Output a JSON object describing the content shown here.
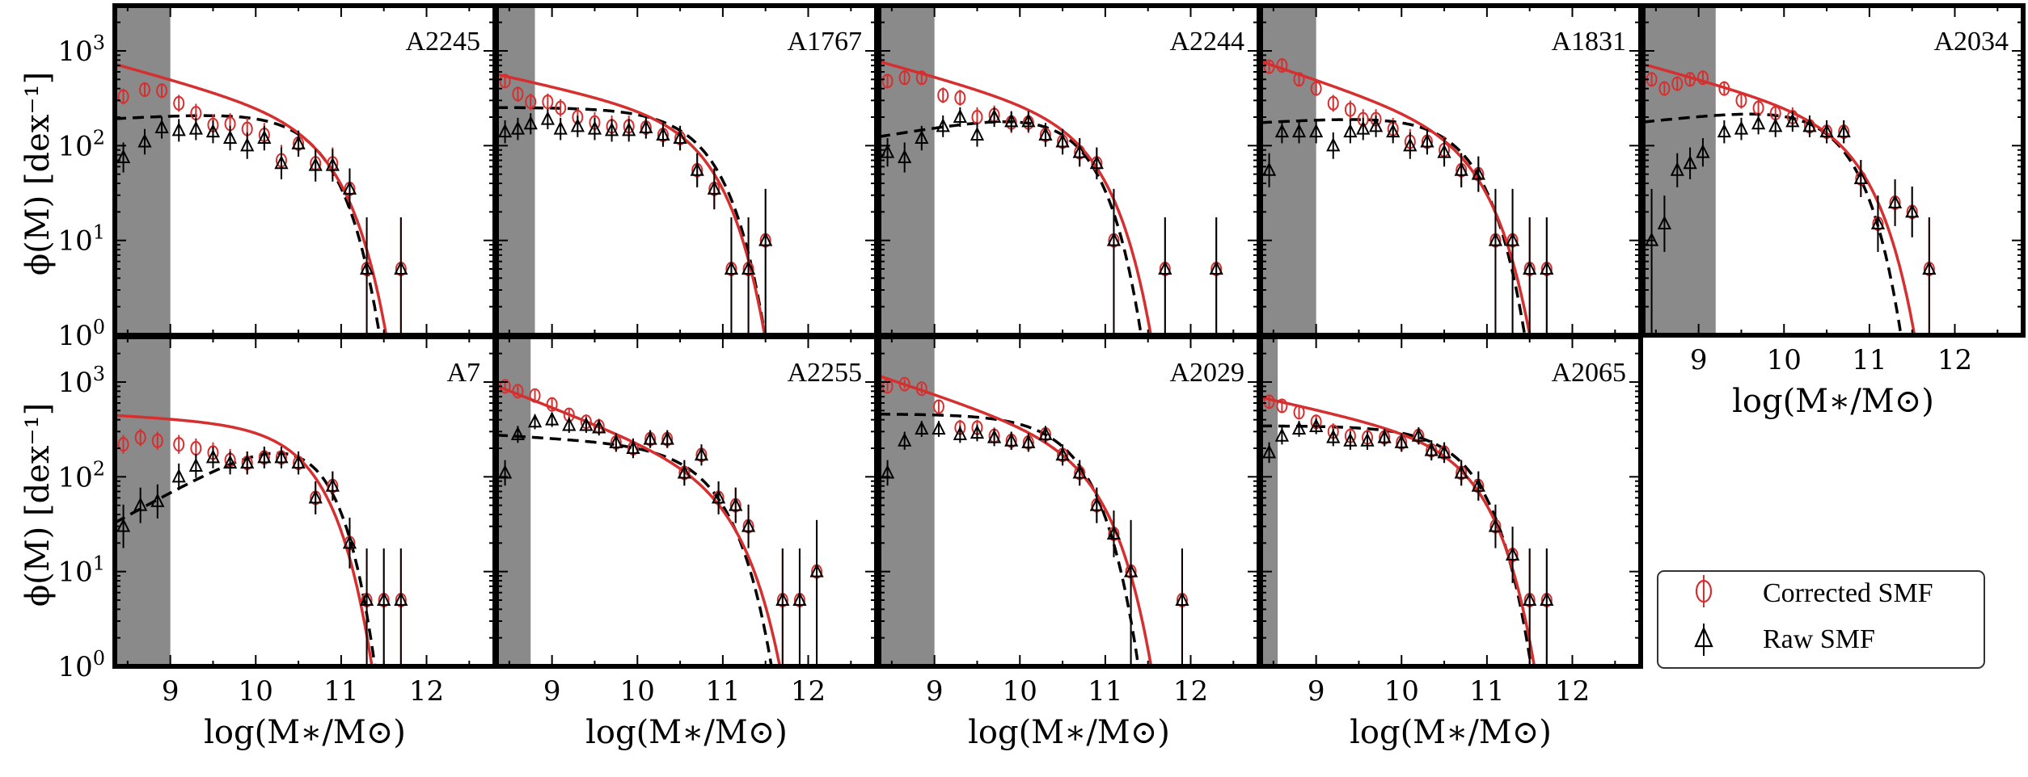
{
  "figure": {
    "ylabel": "ϕ(M) [dex⁻¹]",
    "xlabel": "log(M∗/M⊙)"
  },
  "legend": {
    "corrected_label": "Corrected SMF",
    "raw_label": "Raw SMF",
    "corrected_color": "#d62f2f",
    "raw_color": "#000000"
  },
  "chart_data": [
    {
      "type": "scatter",
      "title": "A2245",
      "xlim": [
        8.35,
        12.8
      ],
      "ylim": [
        1,
        3000
      ],
      "yscale": "log",
      "mass_limit": 9.0,
      "xticks": [
        9,
        10,
        11,
        12
      ],
      "yticks": [
        "10^0",
        "10^1",
        "10^2",
        "10^3"
      ],
      "series": [
        {
          "name": "Corrected SMF",
          "color": "#d62f2f",
          "x": [
            8.45,
            8.7,
            8.9,
            9.1,
            9.3,
            9.5,
            9.7,
            9.9,
            10.1,
            10.3,
            10.5,
            10.7,
            10.9,
            11.1,
            11.3,
            11.7
          ],
          "y": [
            330,
            390,
            380,
            280,
            220,
            165,
            170,
            150,
            130,
            70,
            105,
            65,
            65,
            35,
            5,
            5
          ]
        },
        {
          "name": "Raw SMF",
          "color": "#000000",
          "x": [
            8.45,
            8.7,
            8.9,
            9.1,
            9.3,
            9.5,
            9.7,
            9.9,
            10.1,
            10.3,
            10.5,
            10.7,
            10.9,
            11.1,
            11.3,
            11.7
          ],
          "y": [
            75,
            110,
            155,
            145,
            150,
            140,
            120,
            100,
            120,
            65,
            105,
            62,
            62,
            35,
            5,
            5
          ]
        }
      ],
      "fit_corrected": {
        "logMstar": 10.85,
        "phi": 75,
        "alpha": -1.25
      },
      "fit_raw": {
        "logMstar": 10.7,
        "phi": 110,
        "alpha": -0.95
      }
    },
    {
      "type": "scatter",
      "title": "A1767",
      "xlim": [
        8.35,
        12.8
      ],
      "ylim": [
        1,
        3000
      ],
      "yscale": "log",
      "mass_limit": 8.8,
      "xticks": [
        9,
        10,
        11,
        12
      ],
      "yticks": [
        "10^0",
        "10^1",
        "10^2",
        "10^3"
      ],
      "series": [
        {
          "name": "Corrected SMF",
          "color": "#d62f2f",
          "x": [
            8.45,
            8.6,
            8.75,
            8.95,
            9.1,
            9.3,
            9.5,
            9.7,
            9.9,
            10.1,
            10.3,
            10.5,
            10.7,
            10.9,
            11.1,
            11.3,
            11.5
          ],
          "y": [
            480,
            350,
            290,
            290,
            250,
            200,
            175,
            160,
            160,
            155,
            130,
            120,
            55,
            35,
            5,
            5,
            10
          ]
        },
        {
          "name": "Raw SMF",
          "color": "#000000",
          "x": [
            8.45,
            8.6,
            8.75,
            8.95,
            9.1,
            9.3,
            9.5,
            9.7,
            9.9,
            10.1,
            10.3,
            10.5,
            10.7,
            10.9,
            11.1,
            11.3,
            11.5
          ],
          "y": [
            140,
            150,
            170,
            190,
            150,
            160,
            150,
            145,
            145,
            155,
            130,
            120,
            55,
            35,
            5,
            5,
            10
          ]
        }
      ],
      "fit_corrected": {
        "logMstar": 10.8,
        "phi": 80,
        "alpha": -1.2
      },
      "fit_raw": {
        "logMstar": 10.75,
        "phi": 110,
        "alpha": -1.0
      }
    },
    {
      "type": "scatter",
      "title": "A2244",
      "xlim": [
        8.35,
        12.8
      ],
      "ylim": [
        1,
        3000
      ],
      "yscale": "log",
      "mass_limit": 9.0,
      "xticks": [
        9,
        10,
        11,
        12
      ],
      "yticks": [
        "10^0",
        "10^1",
        "10^2",
        "10^3"
      ],
      "series": [
        {
          "name": "Corrected SMF",
          "color": "#d62f2f",
          "x": [
            8.45,
            8.65,
            8.85,
            9.1,
            9.3,
            9.5,
            9.7,
            9.9,
            10.1,
            10.3,
            10.5,
            10.7,
            10.9,
            11.1,
            11.7,
            12.3
          ],
          "y": [
            480,
            520,
            520,
            340,
            320,
            200,
            210,
            175,
            175,
            130,
            110,
            85,
            65,
            10,
            5,
            5
          ]
        },
        {
          "name": "Raw SMF",
          "color": "#000000",
          "x": [
            8.45,
            8.65,
            8.85,
            9.1,
            9.3,
            9.5,
            9.7,
            9.9,
            10.1,
            10.3,
            10.5,
            10.7,
            10.9,
            11.1,
            11.7,
            12.3
          ],
          "y": [
            85,
            75,
            120,
            160,
            200,
            130,
            200,
            180,
            180,
            130,
            110,
            85,
            65,
            10,
            5,
            5
          ]
        }
      ],
      "fit_corrected": {
        "logMstar": 10.85,
        "phi": 80,
        "alpha": -1.25
      },
      "fit_raw": {
        "logMstar": 10.65,
        "phi": 120,
        "alpha": -0.85
      }
    },
    {
      "type": "scatter",
      "title": "A1831",
      "xlim": [
        8.35,
        12.8
      ],
      "ylim": [
        1,
        3000
      ],
      "yscale": "log",
      "mass_limit": 9.0,
      "xticks": [
        9,
        10,
        11,
        12
      ],
      "yticks": [
        "10^0",
        "10^1",
        "10^2",
        "10^3"
      ],
      "series": [
        {
          "name": "Corrected SMF",
          "color": "#d62f2f",
          "x": [
            8.45,
            8.6,
            8.8,
            9.0,
            9.2,
            9.4,
            9.55,
            9.7,
            9.9,
            10.1,
            10.3,
            10.5,
            10.7,
            10.9,
            11.1,
            11.3,
            11.5,
            11.7
          ],
          "y": [
            680,
            700,
            500,
            400,
            280,
            240,
            190,
            190,
            150,
            110,
            110,
            90,
            55,
            50,
            10,
            10,
            5,
            5
          ]
        },
        {
          "name": "Raw SMF",
          "color": "#000000",
          "x": [
            8.45,
            8.6,
            8.8,
            9.0,
            9.2,
            9.4,
            9.55,
            9.7,
            9.9,
            10.1,
            10.3,
            10.5,
            10.7,
            10.9,
            11.1,
            11.3,
            11.5,
            11.7
          ],
          "y": [
            55,
            140,
            140,
            140,
            100,
            140,
            150,
            160,
            140,
            100,
            110,
            85,
            55,
            50,
            10,
            10,
            5,
            5
          ]
        }
      ],
      "fit_corrected": {
        "logMstar": 10.85,
        "phi": 60,
        "alpha": -1.3
      },
      "fit_raw": {
        "logMstar": 10.7,
        "phi": 100,
        "alpha": -0.95
      }
    },
    {
      "type": "scatter",
      "title": "A2034",
      "xlim": [
        8.35,
        12.8
      ],
      "ylim": [
        1,
        3000
      ],
      "yscale": "log",
      "mass_limit": 9.2,
      "xticks": [
        9,
        10,
        11,
        12
      ],
      "yticks": [
        "10^0",
        "10^1",
        "10^2",
        "10^3"
      ],
      "series": [
        {
          "name": "Corrected SMF",
          "color": "#d62f2f",
          "x": [
            8.45,
            8.6,
            8.75,
            8.9,
            9.05,
            9.3,
            9.5,
            9.7,
            9.9,
            10.1,
            10.3,
            10.5,
            10.7,
            10.9,
            11.1,
            11.3,
            11.5,
            11.7
          ],
          "y": [
            500,
            400,
            450,
            500,
            520,
            400,
            300,
            250,
            220,
            200,
            160,
            140,
            140,
            45,
            15,
            25,
            20,
            5
          ]
        },
        {
          "name": "Raw SMF",
          "color": "#000000",
          "x": [
            8.45,
            8.6,
            8.75,
            8.9,
            9.05,
            9.3,
            9.5,
            9.7,
            9.9,
            10.1,
            10.3,
            10.5,
            10.7,
            10.9,
            11.1,
            11.3,
            11.5,
            11.7
          ],
          "y": [
            10,
            15,
            55,
            65,
            85,
            140,
            150,
            170,
            160,
            180,
            160,
            140,
            140,
            45,
            15,
            25,
            20,
            5
          ]
        }
      ],
      "fit_corrected": {
        "logMstar": 10.85,
        "phi": 75,
        "alpha": -1.25
      },
      "fit_raw": {
        "logMstar": 10.6,
        "phi": 130,
        "alpha": -0.9
      }
    },
    {
      "type": "scatter",
      "title": "A7",
      "xlim": [
        8.35,
        12.8
      ],
      "ylim": [
        1,
        3000
      ],
      "yscale": "log",
      "mass_limit": 9.0,
      "xticks": [
        9,
        10,
        11,
        12
      ],
      "yticks": [
        "10^0",
        "10^1",
        "10^2",
        "10^3"
      ],
      "series": [
        {
          "name": "Corrected SMF",
          "color": "#d62f2f",
          "x": [
            8.45,
            8.65,
            8.85,
            9.1,
            9.3,
            9.5,
            9.7,
            9.9,
            10.1,
            10.3,
            10.5,
            10.7,
            10.9,
            11.1,
            11.3,
            11.5,
            11.7
          ],
          "y": [
            220,
            260,
            240,
            220,
            200,
            180,
            150,
            140,
            160,
            160,
            140,
            60,
            80,
            20,
            5,
            5,
            5
          ]
        },
        {
          "name": "Raw SMF",
          "color": "#000000",
          "x": [
            8.45,
            8.65,
            8.85,
            9.1,
            9.3,
            9.5,
            9.7,
            9.9,
            10.1,
            10.3,
            10.5,
            10.7,
            10.9,
            11.1,
            11.3,
            11.5,
            11.7
          ],
          "y": [
            30,
            50,
            55,
            100,
            130,
            160,
            140,
            140,
            160,
            160,
            140,
            60,
            80,
            20,
            5,
            5,
            5
          ]
        }
      ],
      "fit_corrected": {
        "logMstar": 10.6,
        "phi": 150,
        "alpha": -1.05
      },
      "fit_raw": {
        "logMstar": 10.55,
        "phi": 180,
        "alpha": -0.5
      }
    },
    {
      "type": "scatter",
      "title": "A2255",
      "xlim": [
        8.35,
        12.8
      ],
      "ylim": [
        1,
        3000
      ],
      "yscale": "log",
      "mass_limit": 8.75,
      "xticks": [
        9,
        10,
        11,
        12
      ],
      "yticks": [
        "10^0",
        "10^1",
        "10^2",
        "10^3"
      ],
      "series": [
        {
          "name": "Corrected SMF",
          "color": "#d62f2f",
          "x": [
            8.45,
            8.6,
            8.8,
            9.0,
            9.2,
            9.4,
            9.55,
            9.75,
            9.95,
            10.15,
            10.35,
            10.55,
            10.75,
            10.95,
            11.15,
            11.3,
            11.7,
            11.9,
            12.1
          ],
          "y": [
            900,
            800,
            720,
            580,
            450,
            380,
            340,
            230,
            200,
            250,
            250,
            110,
            170,
            60,
            50,
            30,
            5,
            5,
            10
          ]
        },
        {
          "name": "Raw SMF",
          "color": "#000000",
          "x": [
            8.45,
            8.6,
            8.8,
            9.0,
            9.2,
            9.4,
            9.55,
            9.75,
            9.95,
            10.15,
            10.35,
            10.55,
            10.75,
            10.95,
            11.15,
            11.3,
            11.7,
            11.9,
            12.1
          ],
          "y": [
            110,
            280,
            380,
            400,
            350,
            350,
            330,
            230,
            200,
            250,
            250,
            110,
            170,
            60,
            50,
            30,
            5,
            5,
            10
          ]
        }
      ],
      "fit_corrected": {
        "logMstar": 11.05,
        "phi": 45,
        "alpha": -1.35
      },
      "fit_raw": {
        "logMstar": 10.85,
        "phi": 90,
        "alpha": -1.05
      }
    },
    {
      "type": "scatter",
      "title": "A2029",
      "xlim": [
        8.35,
        12.8
      ],
      "ylim": [
        1,
        3000
      ],
      "yscale": "log",
      "mass_limit": 9.0,
      "xticks": [
        9,
        10,
        11,
        12
      ],
      "yticks": [
        "10^0",
        "10^1",
        "10^2",
        "10^3"
      ],
      "series": [
        {
          "name": "Corrected SMF",
          "color": "#d62f2f",
          "x": [
            8.45,
            8.65,
            8.85,
            9.05,
            9.3,
            9.5,
            9.7,
            9.9,
            10.1,
            10.3,
            10.5,
            10.7,
            10.9,
            11.1,
            11.3,
            11.9
          ],
          "y": [
            900,
            950,
            850,
            550,
            330,
            330,
            270,
            240,
            230,
            280,
            170,
            110,
            50,
            25,
            10,
            5
          ]
        },
        {
          "name": "Raw SMF",
          "color": "#000000",
          "x": [
            8.45,
            8.65,
            8.85,
            9.05,
            9.3,
            9.5,
            9.7,
            9.9,
            10.1,
            10.3,
            10.5,
            10.7,
            10.9,
            11.1,
            11.3,
            11.9
          ],
          "y": [
            110,
            240,
            320,
            320,
            280,
            290,
            260,
            240,
            230,
            280,
            170,
            110,
            50,
            25,
            10,
            5
          ]
        }
      ],
      "fit_corrected": {
        "logMstar": 10.85,
        "phi": 90,
        "alpha": -1.3
      },
      "fit_raw": {
        "logMstar": 10.6,
        "phi": 200,
        "alpha": -1.0
      }
    },
    {
      "type": "scatter",
      "title": "A2065",
      "xlim": [
        8.35,
        12.8
      ],
      "ylim": [
        1,
        3000
      ],
      "yscale": "log",
      "mass_limit": 8.55,
      "xticks": [
        9,
        10,
        11,
        12
      ],
      "yticks": [
        "10^0",
        "10^1",
        "10^2",
        "10^3"
      ],
      "series": [
        {
          "name": "Corrected SMF",
          "color": "#d62f2f",
          "x": [
            8.45,
            8.6,
            8.8,
            9.0,
            9.2,
            9.4,
            9.6,
            9.8,
            10.0,
            10.2,
            10.35,
            10.5,
            10.7,
            10.9,
            11.1,
            11.3,
            11.5,
            11.7
          ],
          "y": [
            620,
            560,
            480,
            380,
            300,
            270,
            260,
            260,
            230,
            270,
            190,
            180,
            110,
            80,
            30,
            15,
            5,
            5
          ]
        },
        {
          "name": "Raw SMF",
          "color": "#000000",
          "x": [
            8.45,
            8.6,
            8.8,
            9.0,
            9.2,
            9.4,
            9.6,
            9.8,
            10.0,
            10.2,
            10.35,
            10.5,
            10.7,
            10.9,
            11.1,
            11.3,
            11.5,
            11.7
          ],
          "y": [
            180,
            270,
            320,
            340,
            260,
            240,
            240,
            260,
            230,
            270,
            190,
            180,
            110,
            80,
            30,
            15,
            5,
            5
          ]
        }
      ],
      "fit_corrected": {
        "logMstar": 10.85,
        "phi": 95,
        "alpha": -1.2
      },
      "fit_raw": {
        "logMstar": 10.75,
        "phi": 150,
        "alpha": -1.0
      }
    }
  ]
}
